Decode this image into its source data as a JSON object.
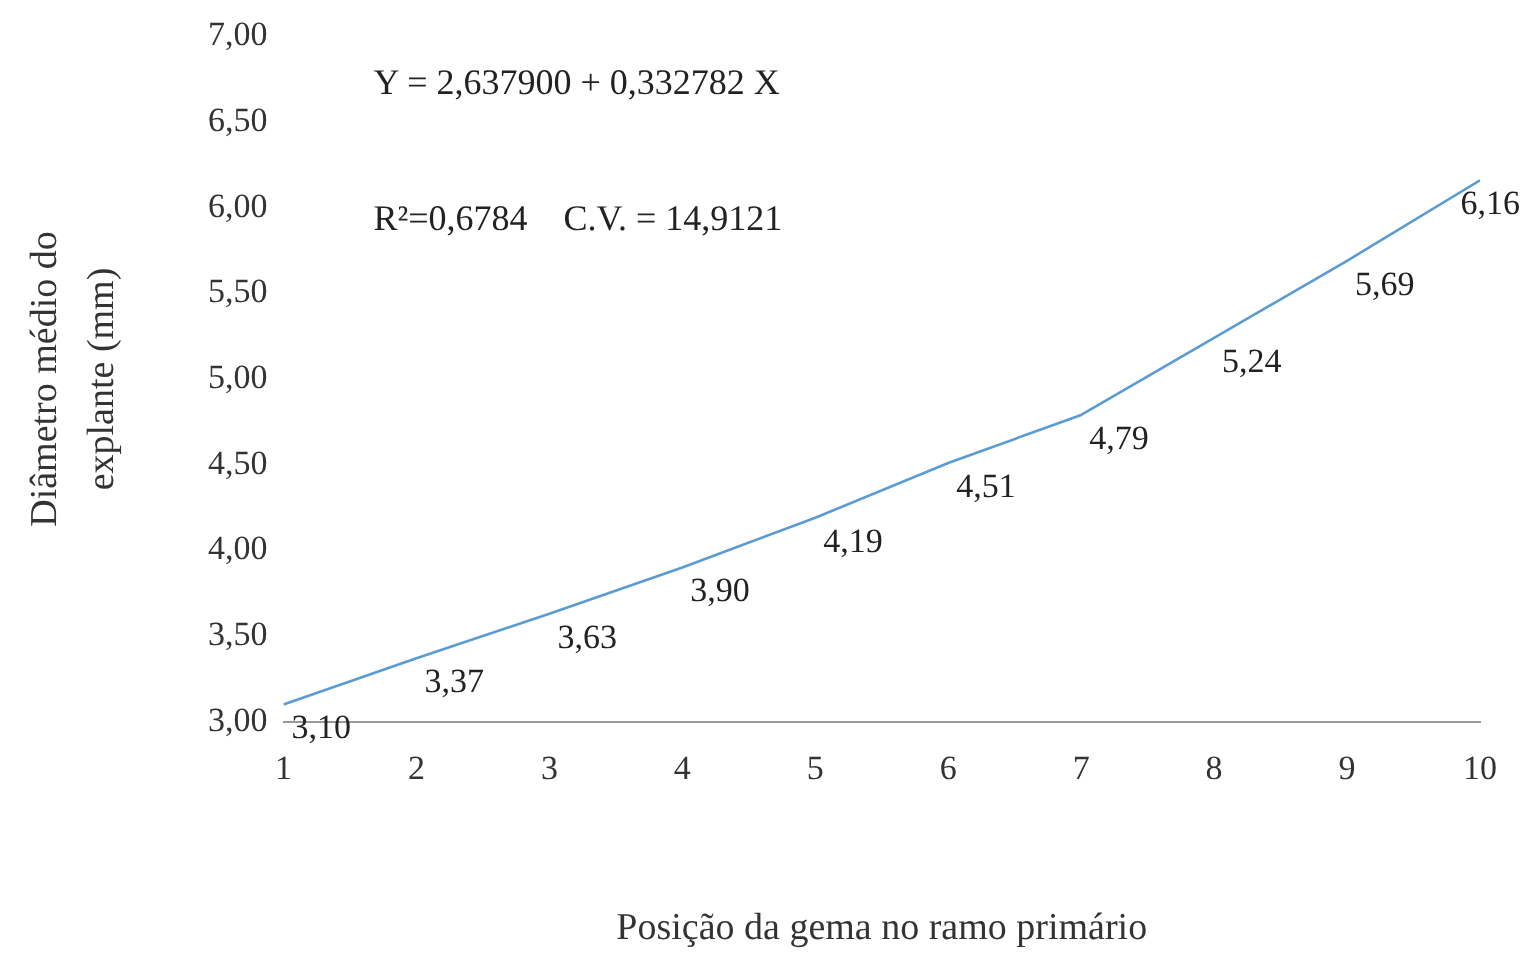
{
  "chart_data": {
    "type": "line",
    "xlabel": "Posição da gema no ramo primário",
    "ylabel": "Diâmetro médio do\nexplante (mm)",
    "x": [
      1,
      2,
      3,
      4,
      5,
      6,
      7,
      8,
      9,
      10
    ],
    "series": [
      {
        "color": "#5b9bd5",
        "values": [
          3.1,
          3.37,
          3.63,
          3.9,
          4.19,
          4.51,
          4.79,
          5.24,
          5.69,
          6.16
        ],
        "value_labels": [
          "3,10",
          "3,37",
          "3,63",
          "3,90",
          "4,19",
          "4,51",
          "4,79",
          "5,24",
          "5,69",
          "6,16"
        ]
      }
    ],
    "xlim": [
      1,
      10
    ],
    "xticks": [
      1,
      2,
      3,
      4,
      5,
      6,
      7,
      8,
      9,
      10
    ],
    "ylim": [
      3,
      7
    ],
    "yticks": [
      {
        "value": 3,
        "label": "3,00"
      },
      {
        "value": 3.5,
        "label": "3,50"
      },
      {
        "value": 4,
        "label": "4,00"
      },
      {
        "value": 4.5,
        "label": "4,50"
      },
      {
        "value": 5,
        "label": "5,00"
      },
      {
        "value": 5.5,
        "label": "5,50"
      },
      {
        "value": 6,
        "label": "6,00"
      },
      {
        "value": 6.5,
        "label": "6,50"
      },
      {
        "value": 7,
        "label": "7,00"
      }
    ],
    "grid": false,
    "legend": false,
    "marker": "none",
    "line_style": "solid",
    "annotations": [
      "Y = 2,637900 + 0,332782 X",
      "R²=0,6784    C.V. = 14,9121"
    ]
  }
}
